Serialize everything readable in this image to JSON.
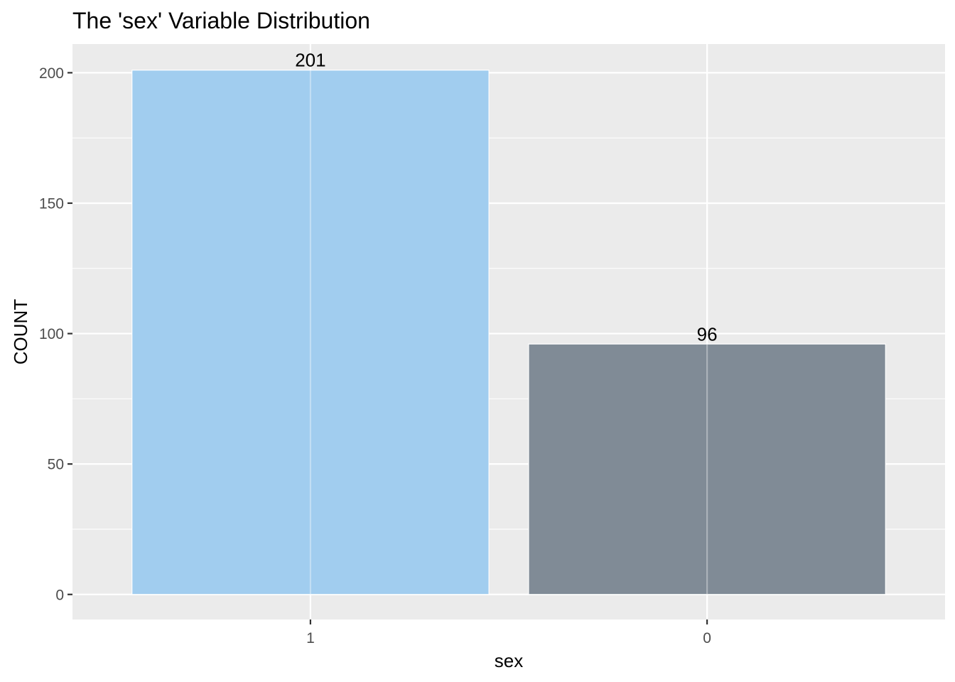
{
  "chart_data": {
    "type": "bar",
    "title": "The 'sex' Variable Distribution",
    "xlabel": "sex",
    "ylabel": "COUNT",
    "categories": [
      "1",
      "0"
    ],
    "values": [
      201,
      96
    ],
    "data_labels": [
      "201",
      "96"
    ],
    "bar_colors": [
      "#a1cdef",
      "#808b96"
    ],
    "ylim": [
      -9.6,
      211
    ],
    "yticks": [
      0,
      50,
      100,
      150,
      200
    ],
    "ytick_labels": [
      "0",
      "50",
      "100",
      "150",
      "200"
    ],
    "grid": true,
    "legend": "none",
    "panel_background": "#ebebeb",
    "gridline_color": "#ffffff"
  }
}
